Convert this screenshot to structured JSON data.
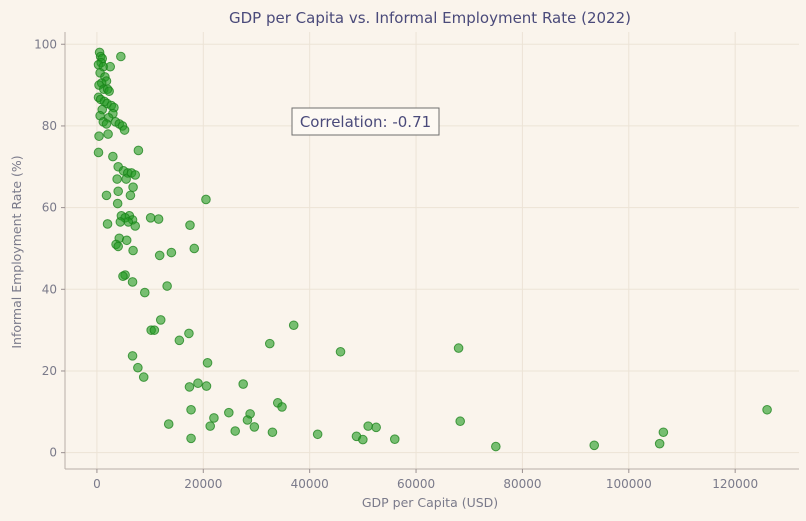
{
  "chart_data": {
    "type": "scatter",
    "title": "GDP per Capita vs. Informal Employment Rate (2022)",
    "xlabel": "GDP per Capita (USD)",
    "ylabel": "Informal Employment Rate (%)",
    "xlim": [
      -6000,
      132000
    ],
    "ylim": [
      -4,
      103
    ],
    "xticks": [
      0,
      20000,
      40000,
      60000,
      80000,
      100000,
      120000
    ],
    "yticks": [
      0,
      20,
      40,
      60,
      80,
      100
    ],
    "grid": true,
    "point_color": "#1f9a1f",
    "annotation": "Correlation: -0.71",
    "points": [
      [
        500,
        98
      ],
      [
        700,
        97
      ],
      [
        1000,
        96.5
      ],
      [
        4500,
        97
      ],
      [
        800,
        95.5
      ],
      [
        300,
        95
      ],
      [
        1200,
        94.5
      ],
      [
        2500,
        94.5
      ],
      [
        600,
        93
      ],
      [
        1500,
        92
      ],
      [
        1800,
        91
      ],
      [
        900,
        90.5
      ],
      [
        400,
        90
      ],
      [
        1300,
        89
      ],
      [
        2000,
        89
      ],
      [
        2300,
        88.5
      ],
      [
        300,
        87
      ],
      [
        700,
        86.5
      ],
      [
        1400,
        86
      ],
      [
        1900,
        85.5
      ],
      [
        2700,
        85
      ],
      [
        3200,
        84.5
      ],
      [
        1000,
        84
      ],
      [
        3000,
        83
      ],
      [
        600,
        82.5
      ],
      [
        2200,
        82
      ],
      [
        1200,
        81
      ],
      [
        1800,
        80.5
      ],
      [
        3500,
        81
      ],
      [
        4200,
        80.5
      ],
      [
        4800,
        80
      ],
      [
        5200,
        79
      ],
      [
        2100,
        78
      ],
      [
        400,
        77.5
      ],
      [
        7800,
        74
      ],
      [
        300,
        73.5
      ],
      [
        3000,
        72.5
      ],
      [
        4000,
        70
      ],
      [
        5000,
        69
      ],
      [
        5800,
        68.5
      ],
      [
        6500,
        68.5
      ],
      [
        7200,
        68
      ],
      [
        3800,
        67
      ],
      [
        5500,
        67
      ],
      [
        6800,
        65
      ],
      [
        4000,
        64
      ],
      [
        1800,
        63
      ],
      [
        6300,
        63
      ],
      [
        20500,
        62
      ],
      [
        3900,
        61
      ],
      [
        6100,
        58
      ],
      [
        4600,
        58
      ],
      [
        5300,
        57.5
      ],
      [
        6700,
        57
      ],
      [
        10100,
        57.5
      ],
      [
        11600,
        57.2
      ],
      [
        4400,
        56.5
      ],
      [
        2000,
        56
      ],
      [
        5900,
        56.5
      ],
      [
        7200,
        55.5
      ],
      [
        17500,
        55.7
      ],
      [
        4200,
        52.5
      ],
      [
        5600,
        52
      ],
      [
        3600,
        51
      ],
      [
        4000,
        50.5
      ],
      [
        6800,
        49.5
      ],
      [
        18300,
        50
      ],
      [
        14000,
        49
      ],
      [
        11800,
        48.3
      ],
      [
        5300,
        43.5
      ],
      [
        4900,
        43.2
      ],
      [
        6700,
        41.8
      ],
      [
        13200,
        40.8
      ],
      [
        9000,
        39.2
      ],
      [
        12000,
        32.5
      ],
      [
        10200,
        30
      ],
      [
        10800,
        30
      ],
      [
        17300,
        29.2
      ],
      [
        15500,
        27.5
      ],
      [
        37000,
        31.2
      ],
      [
        32500,
        26.7
      ],
      [
        45800,
        24.7
      ],
      [
        68000,
        25.6
      ],
      [
        6700,
        23.7
      ],
      [
        7700,
        20.8
      ],
      [
        20800,
        22
      ],
      [
        8800,
        18.5
      ],
      [
        19000,
        17
      ],
      [
        27500,
        16.8
      ],
      [
        17400,
        16.1
      ],
      [
        20600,
        16.3
      ],
      [
        34000,
        12.2
      ],
      [
        34800,
        11.2
      ],
      [
        17700,
        10.5
      ],
      [
        126000,
        10.5
      ],
      [
        24800,
        9.8
      ],
      [
        28800,
        9.5
      ],
      [
        22000,
        8.5
      ],
      [
        28300,
        8
      ],
      [
        68300,
        7.7
      ],
      [
        13500,
        7
      ],
      [
        21300,
        6.5
      ],
      [
        29600,
        6.3
      ],
      [
        51000,
        6.5
      ],
      [
        52500,
        6.2
      ],
      [
        26000,
        5.3
      ],
      [
        33000,
        5
      ],
      [
        106500,
        5
      ],
      [
        41500,
        4.5
      ],
      [
        48800,
        4
      ],
      [
        17700,
        3.5
      ],
      [
        50000,
        3.2
      ],
      [
        56000,
        3.3
      ],
      [
        105800,
        2.2
      ],
      [
        75000,
        1.5
      ],
      [
        93500,
        1.8
      ]
    ]
  }
}
